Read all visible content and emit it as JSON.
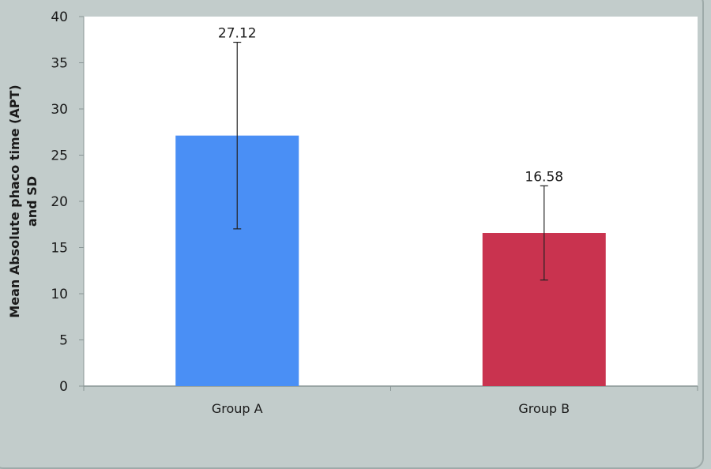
{
  "chart_data": {
    "type": "bar",
    "title": "",
    "xlabel": "",
    "ylabel": "Mean Absolute phaco time (APT) and SD",
    "ylabel_lines": [
      "Mean Absolute phaco time (APT)",
      "and SD"
    ],
    "categories": [
      "Group A",
      "Group B"
    ],
    "values": [
      27.12,
      16.58
    ],
    "data_labels": [
      "27.12",
      "16.58"
    ],
    "error_sd": [
      10.1,
      5.1
    ],
    "colors": [
      "#4a8ff5",
      "#c9334f"
    ],
    "ylim": [
      0,
      40
    ],
    "yticks": [
      0,
      5,
      10,
      15,
      20,
      25,
      30,
      35,
      40
    ],
    "grid": false,
    "legend": "none"
  }
}
